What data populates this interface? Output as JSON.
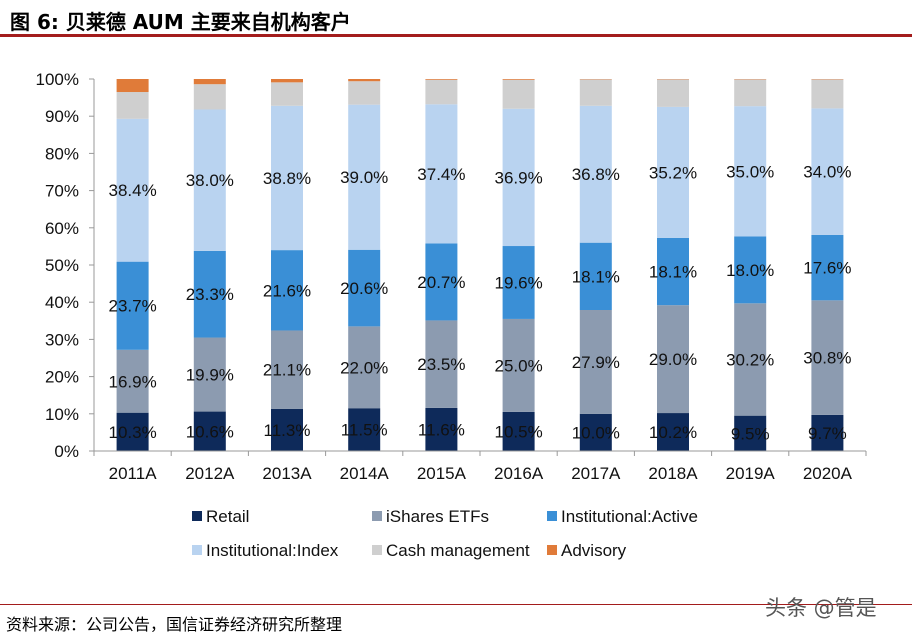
{
  "header": {
    "title": "图 6:  贝莱德 AUM 主要来自机构客户"
  },
  "footer": {
    "source": "资料来源：公司公告，国信证券经济研究所整理",
    "watermark": "头条 @管是"
  },
  "colors": {
    "retail": "#0e2a5a",
    "ishares": "#8c9bb0",
    "inst_active": "#3a8fd6",
    "inst_index": "#b9d3f0",
    "cash": "#cfcfcf",
    "advisory": "#e07b39",
    "axis": "#999999"
  },
  "chart_data": {
    "type": "bar",
    "stacked": true,
    "percent": true,
    "categories": [
      "2011A",
      "2012A",
      "2013A",
      "2014A",
      "2015A",
      "2016A",
      "2017A",
      "2018A",
      "2019A",
      "2020A"
    ],
    "ylim": [
      0,
      100
    ],
    "yticks": [
      0,
      10,
      20,
      30,
      40,
      50,
      60,
      70,
      80,
      90,
      100
    ],
    "ytick_labels": [
      "0%",
      "10%",
      "20%",
      "30%",
      "40%",
      "50%",
      "60%",
      "70%",
      "80%",
      "90%",
      "100%"
    ],
    "series": [
      {
        "name": "Retail",
        "color_key": "retail",
        "values": [
          10.3,
          10.6,
          11.3,
          11.5,
          11.6,
          10.5,
          10.0,
          10.2,
          9.5,
          9.7
        ],
        "labels": [
          "10.3%",
          "10.6%",
          "11.3%",
          "11.5%",
          "11.6%",
          "10.5%",
          "10.0%",
          "10.2%",
          "9.5%",
          "9.7%"
        ]
      },
      {
        "name": "iShares ETFs",
        "color_key": "ishares",
        "values": [
          16.9,
          19.9,
          21.1,
          22.0,
          23.5,
          25.0,
          27.9,
          29.0,
          30.2,
          30.8
        ],
        "labels": [
          "16.9%",
          "19.9%",
          "21.1%",
          "22.0%",
          "23.5%",
          "25.0%",
          "27.9%",
          "29.0%",
          "30.2%",
          "30.8%"
        ]
      },
      {
        "name": "Institutional:Active",
        "color_key": "inst_active",
        "values": [
          23.7,
          23.3,
          21.6,
          20.6,
          20.7,
          19.6,
          18.1,
          18.1,
          18.0,
          17.6
        ],
        "labels": [
          "23.7%",
          "23.3%",
          "21.6%",
          "20.6%",
          "20.7%",
          "19.6%",
          "18.1%",
          "18.1%",
          "18.0%",
          "17.6%"
        ]
      },
      {
        "name": "Institutional:Index",
        "color_key": "inst_index",
        "values": [
          38.4,
          38.0,
          38.8,
          39.0,
          37.4,
          36.9,
          36.8,
          35.2,
          35.0,
          34.0
        ],
        "labels": [
          "38.4%",
          "38.0%",
          "38.8%",
          "39.0%",
          "37.4%",
          "36.9%",
          "36.8%",
          "35.2%",
          "35.0%",
          "34.0%"
        ]
      },
      {
        "name": "Cash management",
        "color_key": "cash",
        "values": [
          7.2,
          6.8,
          6.3,
          6.3,
          6.6,
          7.8,
          7.1,
          7.4,
          7.2,
          7.8
        ],
        "labels": []
      },
      {
        "name": "Advisory",
        "color_key": "advisory",
        "values": [
          3.5,
          1.4,
          0.9,
          0.6,
          0.2,
          0.2,
          0.1,
          0.1,
          0.1,
          0.1
        ],
        "labels": []
      }
    ],
    "legend": {
      "placement": "bottom",
      "columns": 3
    }
  }
}
